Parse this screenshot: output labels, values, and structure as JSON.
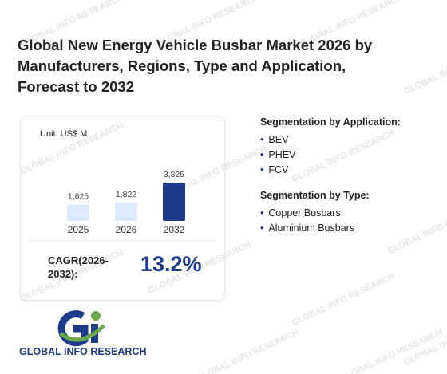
{
  "title": "Global New Energy Vehicle Busbar Market 2026 by Manufacturers, Regions, Type and Application, Forecast to 2032",
  "chart_data": {
    "type": "bar",
    "subtitle": "Unit: US$ M",
    "categories": [
      "2025",
      "2026",
      "2032"
    ],
    "values": [
      1625,
      1822,
      3825
    ],
    "value_labels": [
      "1,625",
      "1,822",
      "3,825"
    ],
    "colors": [
      "#dbeafe",
      "#dbeafe",
      "#1e3a8a"
    ]
  },
  "cagr": {
    "label": "CAGR(2026-2032):",
    "value": "13.2%"
  },
  "segments": [
    {
      "heading": "Segmentation by Application:",
      "items": [
        "BEV",
        "PHEV",
        "FCV"
      ]
    },
    {
      "heading": "Segmentation by Type:",
      "items": [
        "Copper Busbars",
        "Aluminium Busbars"
      ]
    }
  ],
  "logo_text": "GLOBAL INFO RESEARCH",
  "watermark": "GLOBAL INFO RESEARCH"
}
